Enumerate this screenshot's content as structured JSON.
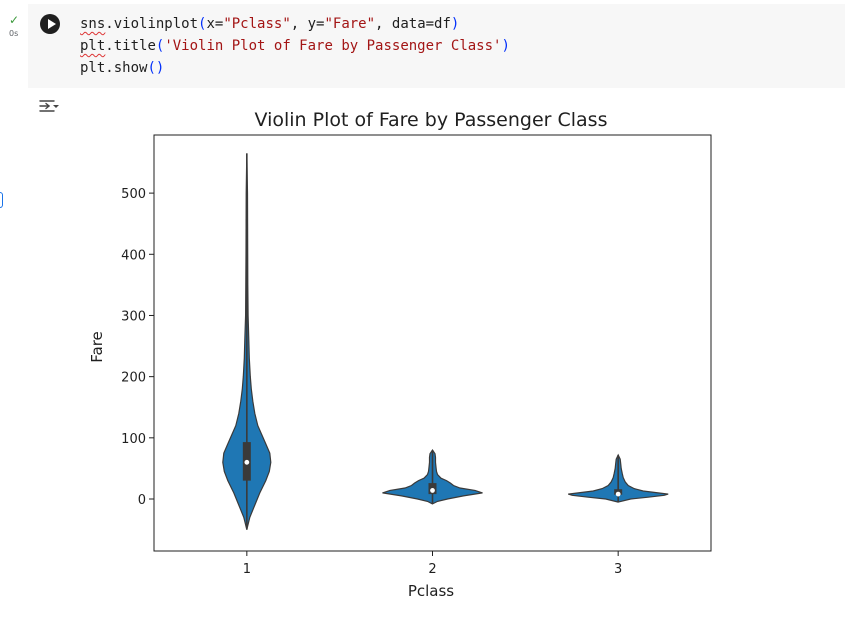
{
  "cell": {
    "status_icon": "check-icon",
    "exec_time": "0s",
    "run_icon": "play-icon",
    "code_lines": [
      {
        "parts": [
          {
            "t": "sns",
            "cls": "squiggle"
          },
          {
            "t": ".violinplot",
            "cls": ""
          },
          {
            "t": "(",
            "cls": "paren"
          },
          {
            "t": "x=",
            "cls": ""
          },
          {
            "t": "\"Pclass\"",
            "cls": "str"
          },
          {
            "t": ", y=",
            "cls": ""
          },
          {
            "t": "\"Fare\"",
            "cls": "str"
          },
          {
            "t": ", data=df",
            "cls": ""
          },
          {
            "t": ")",
            "cls": "paren"
          }
        ]
      },
      {
        "parts": [
          {
            "t": "plt",
            "cls": "squiggle"
          },
          {
            "t": ".title",
            "cls": ""
          },
          {
            "t": "(",
            "cls": "paren"
          },
          {
            "t": "'Violin Plot of Fare by Passenger Class'",
            "cls": "str"
          },
          {
            "t": ")",
            "cls": "paren"
          }
        ]
      },
      {
        "parts": [
          {
            "t": "plt.show",
            "cls": ""
          },
          {
            "t": "()",
            "cls": "paren"
          }
        ]
      }
    ]
  },
  "output": {
    "icon": "output-toggle-icon"
  },
  "chart_data": {
    "type": "violin",
    "title": "Violin Plot of Fare by Passenger Class",
    "xlabel": "Pclass",
    "ylabel": "Fare",
    "categories": [
      "1",
      "2",
      "3"
    ],
    "ylim": [
      -85,
      595
    ],
    "yticks": [
      0,
      100,
      200,
      300,
      400,
      500
    ],
    "color": "#1f77b4",
    "violins": [
      {
        "category": "1",
        "min": -50,
        "max": 565,
        "q1": 30,
        "median": 60,
        "q3": 93,
        "width_profile": [
          [
            -50,
            0.0
          ],
          [
            -30,
            0.06
          ],
          [
            -10,
            0.16
          ],
          [
            10,
            0.26
          ],
          [
            30,
            0.38
          ],
          [
            45,
            0.45
          ],
          [
            60,
            0.48
          ],
          [
            75,
            0.46
          ],
          [
            90,
            0.38
          ],
          [
            105,
            0.3
          ],
          [
            120,
            0.22
          ],
          [
            140,
            0.16
          ],
          [
            160,
            0.12
          ],
          [
            180,
            0.09
          ],
          [
            200,
            0.07
          ],
          [
            230,
            0.05
          ],
          [
            260,
            0.04
          ],
          [
            300,
            0.025
          ],
          [
            350,
            0.02
          ],
          [
            400,
            0.017
          ],
          [
            450,
            0.015
          ],
          [
            500,
            0.013
          ],
          [
            565,
            0.0
          ]
        ]
      },
      {
        "category": "2",
        "min": -8,
        "max": 80,
        "q1": 8,
        "median": 14,
        "q3": 26,
        "width_profile": [
          [
            -8,
            0.0
          ],
          [
            -4,
            0.1
          ],
          [
            0,
            0.3
          ],
          [
            5,
            0.62
          ],
          [
            10,
            1.0
          ],
          [
            14,
            0.85
          ],
          [
            18,
            0.55
          ],
          [
            22,
            0.42
          ],
          [
            26,
            0.36
          ],
          [
            30,
            0.28
          ],
          [
            34,
            0.17
          ],
          [
            40,
            0.1
          ],
          [
            45,
            0.08
          ],
          [
            52,
            0.07
          ],
          [
            60,
            0.06
          ],
          [
            68,
            0.06
          ],
          [
            74,
            0.05
          ],
          [
            80,
            0.0
          ]
        ]
      },
      {
        "category": "3",
        "min": -5,
        "max": 72,
        "q1": 7,
        "median": 8,
        "q3": 16,
        "width_profile": [
          [
            -5,
            0.0
          ],
          [
            0,
            0.25
          ],
          [
            3,
            0.6
          ],
          [
            6,
            0.92
          ],
          [
            8,
            1.0
          ],
          [
            10,
            0.8
          ],
          [
            13,
            0.5
          ],
          [
            17,
            0.32
          ],
          [
            22,
            0.2
          ],
          [
            28,
            0.14
          ],
          [
            35,
            0.1
          ],
          [
            42,
            0.08
          ],
          [
            50,
            0.06
          ],
          [
            58,
            0.05
          ],
          [
            65,
            0.04
          ],
          [
            72,
            0.0
          ]
        ]
      }
    ]
  }
}
